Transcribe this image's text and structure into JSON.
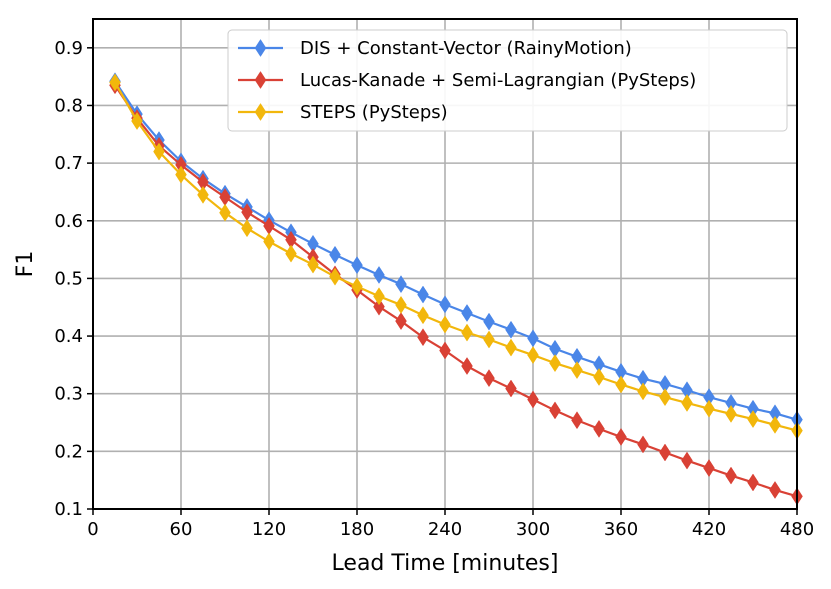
{
  "chart_data": {
    "type": "line",
    "title": "",
    "xlabel": "Lead Time [minutes]",
    "ylabel": "F1",
    "xlim": [
      0,
      480
    ],
    "ylim": [
      0.1,
      0.95
    ],
    "xticks": [
      0,
      60,
      120,
      180,
      240,
      300,
      360,
      420,
      480
    ],
    "yticks": [
      0.1,
      0.2,
      0.3,
      0.4,
      0.5,
      0.6,
      0.7,
      0.8,
      0.9
    ],
    "grid": true,
    "legend_position": "top-right",
    "x": [
      15,
      30,
      45,
      60,
      75,
      90,
      105,
      120,
      135,
      150,
      165,
      180,
      195,
      210,
      225,
      240,
      255,
      270,
      285,
      300,
      315,
      330,
      345,
      360,
      375,
      390,
      405,
      420,
      435,
      450,
      465,
      480
    ],
    "series": [
      {
        "name": "DIS + Constant-Vector (RainyMotion)",
        "color": "#4a86e8",
        "values": [
          0.842,
          0.785,
          0.74,
          0.703,
          0.673,
          0.647,
          0.624,
          0.601,
          0.58,
          0.56,
          0.541,
          0.523,
          0.506,
          0.49,
          0.472,
          0.455,
          0.44,
          0.425,
          0.411,
          0.396,
          0.378,
          0.364,
          0.351,
          0.338,
          0.326,
          0.317,
          0.306,
          0.294,
          0.284,
          0.274,
          0.266,
          0.255
        ]
      },
      {
        "name": "Lucas-Kanade + Semi-Lagrangian (PySteps)",
        "color": "#d94135",
        "values": [
          0.835,
          0.778,
          0.73,
          0.697,
          0.667,
          0.641,
          0.615,
          0.591,
          0.567,
          0.537,
          0.507,
          0.48,
          0.451,
          0.426,
          0.398,
          0.375,
          0.348,
          0.327,
          0.309,
          0.29,
          0.271,
          0.254,
          0.239,
          0.225,
          0.212,
          0.198,
          0.184,
          0.171,
          0.158,
          0.146,
          0.133,
          0.122
        ]
      },
      {
        "name": "STEPS (PySteps)",
        "color": "#f2b70c",
        "values": [
          0.84,
          0.773,
          0.72,
          0.68,
          0.645,
          0.614,
          0.587,
          0.564,
          0.543,
          0.524,
          0.503,
          0.486,
          0.469,
          0.454,
          0.436,
          0.42,
          0.406,
          0.394,
          0.38,
          0.367,
          0.353,
          0.341,
          0.329,
          0.316,
          0.304,
          0.294,
          0.284,
          0.274,
          0.265,
          0.256,
          0.246,
          0.236
        ]
      }
    ]
  }
}
